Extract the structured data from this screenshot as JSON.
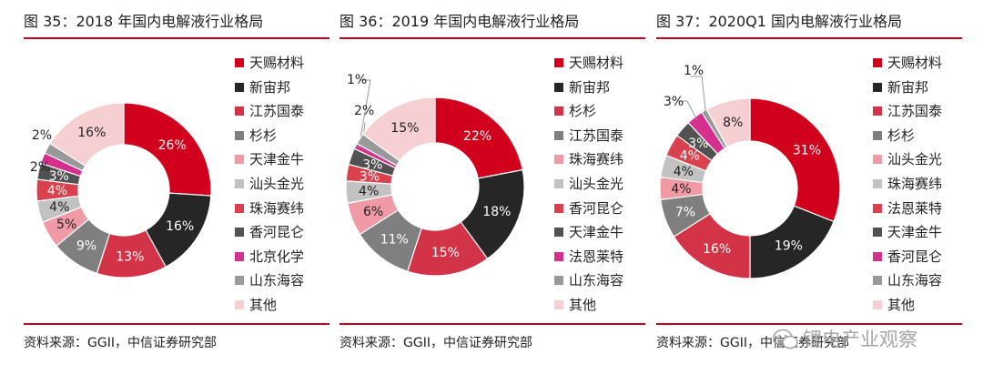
{
  "chart_data": [
    {
      "type": "pie",
      "title": "图 35：2018 年国内电解液行业格局",
      "source": "资料来源：GGII，中信证券研究部",
      "categories": [
        "天赐材料",
        "新宙邦",
        "江苏国泰",
        "杉杉",
        "天津金牛",
        "汕头金光",
        "珠海赛纬",
        "香河昆仑",
        "北京化学",
        "山东海容",
        "其他"
      ],
      "values": [
        26,
        16,
        13,
        9,
        5,
        4,
        4,
        3,
        2,
        2,
        16
      ],
      "labels": [
        "26%",
        "16%",
        "13%",
        "9%",
        "5%",
        "4%",
        "4%",
        "3%",
        "2%",
        "2%",
        "16%"
      ],
      "colors": [
        "#d1001c",
        "#262626",
        "#d33347",
        "#7f7f7f",
        "#ef9aa5",
        "#c2c2c2",
        "#d8414d",
        "#525252",
        "#d6308f",
        "#999999",
        "#f6cfd3"
      ],
      "legend_position": "right"
    },
    {
      "type": "pie",
      "title": "图 36：2019 年国内电解液行业格局",
      "source": "资料来源：GGII，中信证券研究部",
      "categories": [
        "天赐材料",
        "新宙邦",
        "杉杉",
        "江苏国泰",
        "珠海赛纬",
        "汕头金光",
        "香河昆仑",
        "天津金牛",
        "法恩莱特",
        "山东海容",
        "其他"
      ],
      "values": [
        22,
        18,
        15,
        11,
        6,
        4,
        3,
        3,
        1,
        2,
        15
      ],
      "labels": [
        "22%",
        "18%",
        "15%",
        "11%",
        "6%",
        "4%",
        "3%",
        "3%",
        "1%",
        "2%",
        "15%"
      ],
      "colors": [
        "#d1001c",
        "#262626",
        "#d33347",
        "#7f7f7f",
        "#ef9aa5",
        "#c2c2c2",
        "#d8414d",
        "#525252",
        "#d6308f",
        "#999999",
        "#f6cfd3"
      ],
      "legend_position": "right"
    },
    {
      "type": "pie",
      "title": "图 37：2020Q1 国内电解液行业格局",
      "source": "资料来源：GGII，中信证券研究部",
      "categories": [
        "天赐材料",
        "新宙邦",
        "江苏国泰",
        "杉杉",
        "汕头金光",
        "珠海赛纬",
        "法恩莱特",
        "天津金牛",
        "香河昆仑",
        "山东海容",
        "其他"
      ],
      "values": [
        31,
        19,
        16,
        7,
        4,
        4,
        4,
        3,
        3,
        1,
        8
      ],
      "labels": [
        "31%",
        "19%",
        "16%",
        "7%",
        "4%",
        "4%",
        "4%",
        "3%",
        "3%",
        "1%",
        "8%"
      ],
      "colors": [
        "#d1001c",
        "#262626",
        "#d33347",
        "#7f7f7f",
        "#ef9aa5",
        "#c2c2c2",
        "#d8414d",
        "#525252",
        "#d6308f",
        "#999999",
        "#f6cfd3"
      ],
      "legend_position": "right"
    }
  ],
  "watermark": {
    "text": "锂电产业观察",
    "icon": "wechat-icon"
  }
}
